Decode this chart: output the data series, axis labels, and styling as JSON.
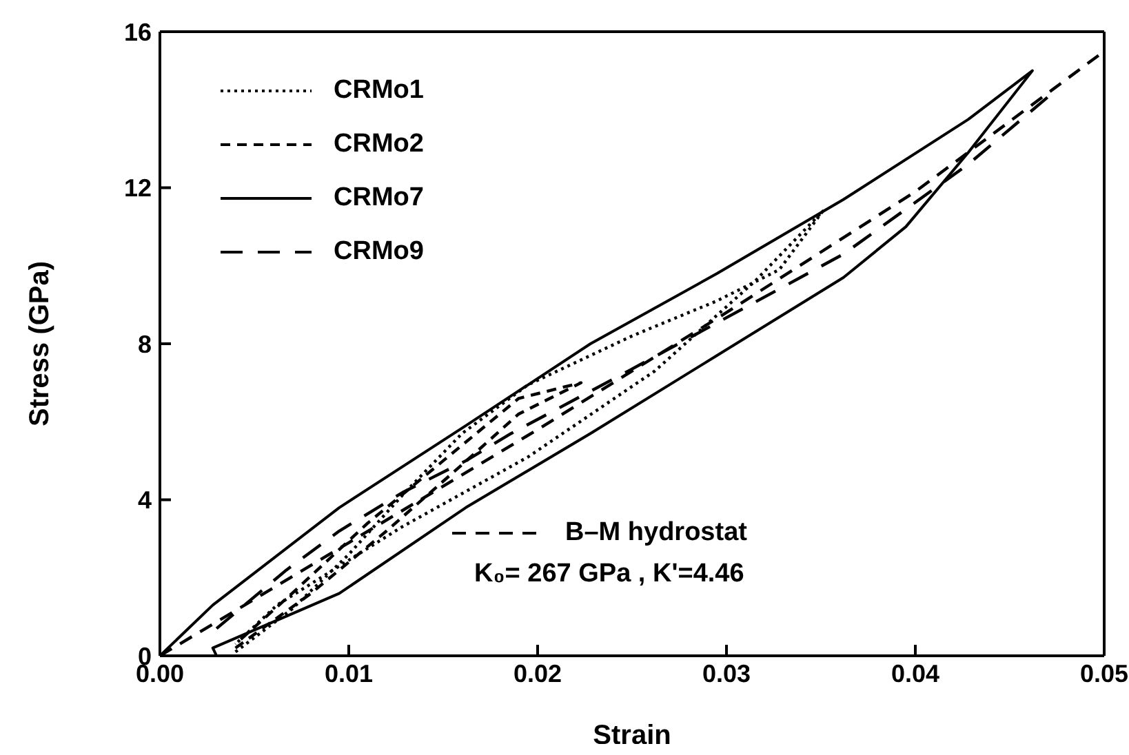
{
  "chart_data": {
    "type": "line",
    "xlabel": "Strain",
    "ylabel": "Stress (GPa)",
    "xlim": [
      0,
      0.05
    ],
    "xticks": [
      {
        "value": 0,
        "label": "0.00"
      },
      {
        "value": 0.01,
        "label": "0.01"
      },
      {
        "value": 0.02,
        "label": "0.02"
      },
      {
        "value": 0.03,
        "label": "0.03"
      },
      {
        "value": 0.04,
        "label": "0.04"
      },
      {
        "value": 0.05,
        "label": "0.05"
      }
    ],
    "ylim": [
      0,
      16
    ],
    "yticks": [
      0,
      4,
      8,
      12,
      16
    ],
    "grid": false,
    "legend": "top left",
    "marker": "none",
    "series": [
      {
        "name": "CRMo1",
        "color": "#000000",
        "line_style": "dotted",
        "x": [
          0.004,
          0.007,
          0.01,
          0.013,
          0.016,
          0.0195,
          0.025,
          0.0295,
          0.0328,
          0.0351,
          0.0315,
          0.0262,
          0.0195,
          0.0128,
          0.0062,
          0.004
        ],
        "values": [
          0.1,
          1.2,
          2.6,
          4.2,
          5.7,
          6.95,
          8.2,
          9.1,
          9.9,
          11.4,
          9.6,
          7.3,
          5.1,
          3.3,
          1.3,
          0.3
        ]
      },
      {
        "name": "CRMo2",
        "color": "#000000",
        "line_style": "dashed",
        "x": [
          0.004,
          0.008,
          0.012,
          0.016,
          0.019,
          0.0223,
          0.019,
          0.015,
          0.011,
          0.007,
          0.004
        ],
        "values": [
          0.2,
          1.6,
          3.2,
          4.9,
          6.2,
          7.0,
          6.6,
          5.0,
          3.4,
          1.6,
          0.3
        ]
      },
      {
        "name": "CRMo7",
        "color": "#000000",
        "line_style": "solid",
        "x": [
          0,
          0.0028,
          0.0095,
          0.0162,
          0.0228,
          0.0295,
          0.0362,
          0.0428,
          0.0462,
          0.0428,
          0.0395,
          0.0362,
          0.0295,
          0.0228,
          0.0162,
          0.0095,
          0.0028,
          0.003
        ],
        "values": [
          0,
          1.3,
          3.8,
          5.9,
          8.0,
          9.8,
          11.7,
          13.75,
          15.0,
          12.9,
          11.0,
          9.7,
          7.7,
          5.7,
          3.8,
          1.6,
          0.2,
          0
        ]
      },
      {
        "name": "CRMo9",
        "color": "#000000",
        "line_style": "dashed",
        "x": [
          0.003,
          0.0067,
          0.0095,
          0.0129,
          0.0162,
          0.0186,
          0.0248,
          0.0362,
          0.0428,
          0.0472
        ],
        "values": [
          0.7,
          2.2,
          3.2,
          4.2,
          5.0,
          5.7,
          7.3,
          10.3,
          12.6,
          14.4
        ]
      },
      {
        "name": "B–M hydrostat",
        "color": "#000000",
        "line_style": "dashed",
        "x": [
          0,
          0.01,
          0.02,
          0.03,
          0.04,
          0.05
        ],
        "values": [
          0,
          2.9,
          5.8,
          8.8,
          11.9,
          15.5
        ]
      }
    ],
    "annotations": [
      "K₀= 267 GPa , K'=4.46"
    ]
  }
}
